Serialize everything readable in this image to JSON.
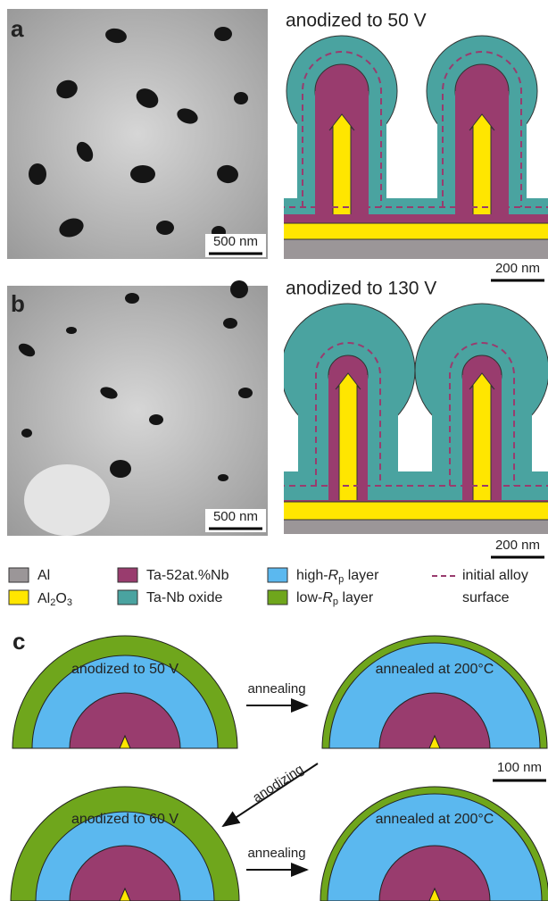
{
  "panel_a": {
    "label": "a",
    "title": "anodized to 50 V",
    "sem_scale": "500 nm",
    "schematic_scale": "200 nm"
  },
  "panel_b": {
    "label": "b",
    "title": "anodized to 130 V",
    "sem_scale": "500 nm",
    "schematic_scale": "200 nm"
  },
  "legend": {
    "items": [
      {
        "parts": [
          "Al"
        ]
      },
      {
        "parts": [
          "Al",
          "2",
          "O",
          "3"
        ]
      },
      {
        "parts": [
          "Ta-52at.%Nb"
        ]
      },
      {
        "parts": [
          "Ta-Nb oxide"
        ]
      },
      {
        "parts": [
          "high-",
          "R",
          "p",
          " layer"
        ]
      },
      {
        "parts": [
          "low-",
          "R",
          "p",
          " layer"
        ]
      },
      {
        "parts": [
          "initial alloy",
          "surface"
        ]
      }
    ]
  },
  "panel_c": {
    "label": "c",
    "scale": "100 nm",
    "diagrams": [
      {
        "title": "anodized to 50 V"
      },
      {
        "title": "annealed at 200°C"
      },
      {
        "title": "anodized to 60 V"
      },
      {
        "title": "annealed at 200°C"
      }
    ],
    "arrows": [
      {
        "label": "annealing"
      },
      {
        "label": "anodizing"
      },
      {
        "label": "annealing"
      }
    ]
  }
}
